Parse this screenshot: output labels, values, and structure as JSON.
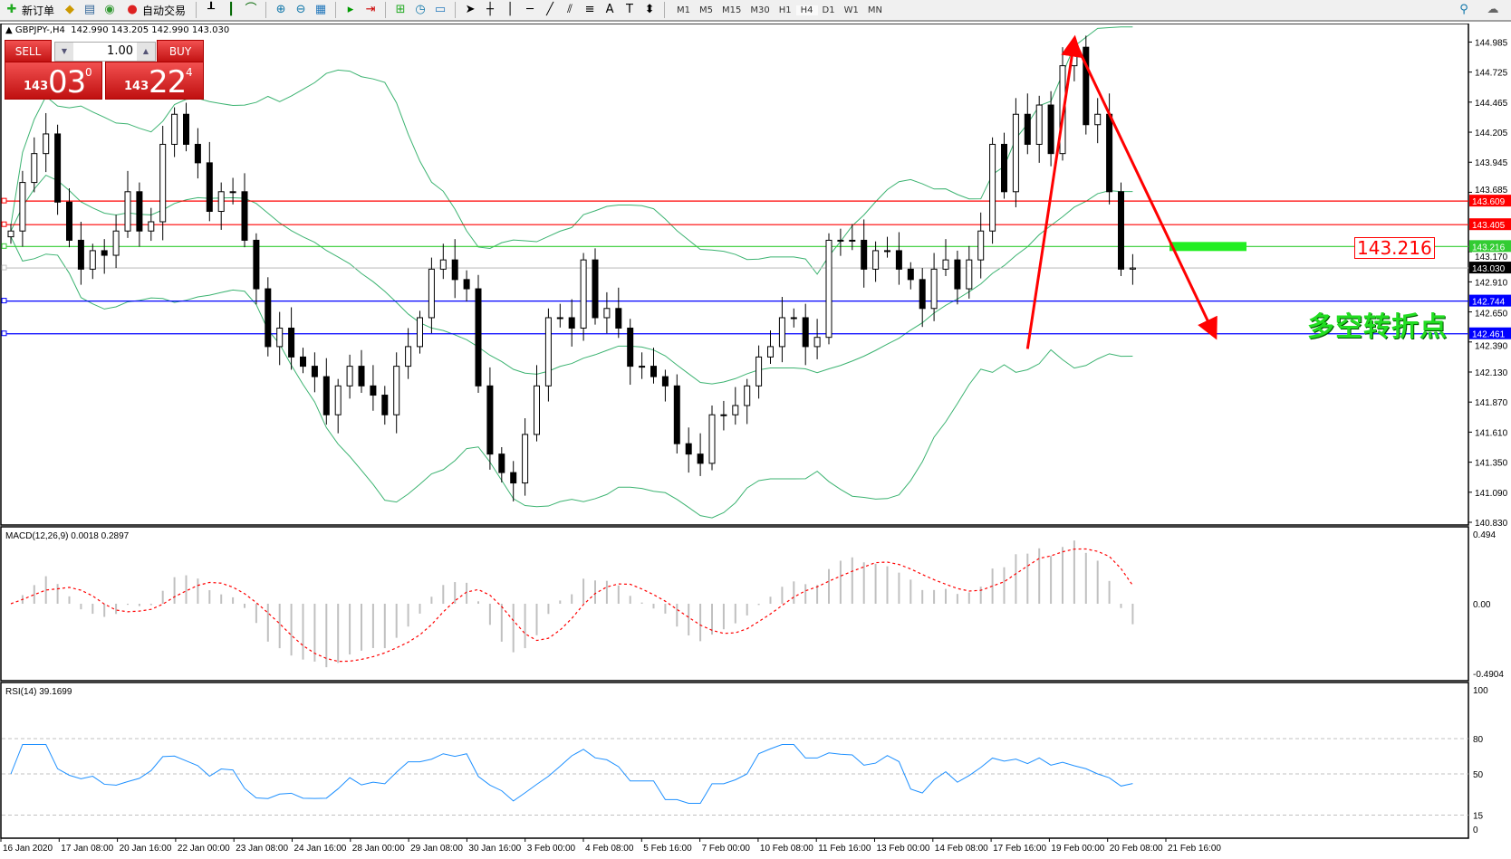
{
  "toolbar": {
    "new_order": "新订单",
    "auto_trading": "自动交易",
    "timeframes": [
      "M1",
      "M5",
      "M15",
      "M30",
      "H1",
      "H4",
      "D1",
      "W1",
      "MN"
    ],
    "active_timeframe": "H4"
  },
  "chart_header": {
    "symbol": "GBPJPY-,H4",
    "ohlc": "142.990 143.205 142.990 143.030"
  },
  "one_click": {
    "sell_label": "SELL",
    "buy_label": "BUY",
    "lot": "1.00",
    "sell_big": "143",
    "sell_main": "03",
    "sell_frac": "0",
    "buy_big": "143",
    "buy_main": "22",
    "buy_frac": "4"
  },
  "annotation_label": "143.216",
  "annotation_text": "多空转折点",
  "colors": {
    "up_down_candle": "#000000",
    "bollinger": "#3cb371",
    "resistance": "#ff0000",
    "pivot": "#33cc33",
    "support": "#0000ff",
    "bid": "#c0c0c0",
    "macd_hist": "#c0c0c0",
    "macd_signal": "#ff0000",
    "rsi": "#1e90ff",
    "arrows": "#ff0000"
  },
  "chart_data": {
    "type": "candlestick",
    "symbol": "GBPJPY-",
    "timeframe": "H4",
    "price_axis": {
      "ylim": [
        140.83,
        145.11
      ],
      "ticks": [
        "144.985",
        "144.725",
        "144.465",
        "144.205",
        "143.945",
        "143.685",
        "143.170",
        "142.910",
        "142.650",
        "142.390",
        "142.130",
        "141.870",
        "141.610",
        "141.350",
        "141.090",
        "140.830"
      ]
    },
    "time_ticks": [
      "16 Jan 2020",
      "17 Jan 08:00",
      "20 Jan 16:00",
      "22 Jan 00:00",
      "23 Jan 08:00",
      "24 Jan 16:00",
      "28 Jan 00:00",
      "29 Jan 08:00",
      "30 Jan 16:00",
      "3 Feb 00:00",
      "4 Feb 08:00",
      "5 Feb 16:00",
      "7 Feb 00:00",
      "10 Feb 08:00",
      "11 Feb 16:00",
      "13 Feb 00:00",
      "14 Feb 08:00",
      "17 Feb 16:00",
      "19 Feb 00:00",
      "20 Feb 08:00",
      "21 Feb 16:00"
    ],
    "closes_approx": [
      143.35,
      143.77,
      144.02,
      144.19,
      143.6,
      143.27,
      143.02,
      143.18,
      143.14,
      143.35,
      143.69,
      143.35,
      143.43,
      144.1,
      144.36,
      144.1,
      143.94,
      143.52,
      143.69,
      143.69,
      143.27,
      142.85,
      142.35,
      142.51,
      142.26,
      142.18,
      142.09,
      141.76,
      142.01,
      142.18,
      142.01,
      141.93,
      141.76,
      142.18,
      142.35,
      142.6,
      143.02,
      143.1,
      142.93,
      142.85,
      142.01,
      141.42,
      141.26,
      141.17,
      141.59,
      142.01,
      142.6,
      142.6,
      142.51,
      143.1,
      142.6,
      142.68,
      142.51,
      142.18,
      142.18,
      142.09,
      142.01,
      141.51,
      141.42,
      141.34,
      141.76,
      141.76,
      141.84,
      142.01,
      142.26,
      142.35,
      142.6,
      142.6,
      142.35,
      142.43,
      143.27,
      143.27,
      143.27,
      143.02,
      143.18,
      143.18,
      143.02,
      142.93,
      142.68,
      143.02,
      143.1,
      142.85,
      143.1,
      143.35,
      144.1,
      143.69,
      144.36,
      144.1,
      144.44,
      144.02,
      144.78,
      144.94,
      144.27,
      144.36,
      143.69,
      143.02,
      143.03
    ],
    "last_ohlc": {
      "open": 142.99,
      "high": 143.205,
      "low": 142.99,
      "close": 143.03
    },
    "horizontal_lines": [
      {
        "price": 143.609,
        "label": "143.609",
        "kind": "resistance"
      },
      {
        "price": 143.405,
        "label": "143.405",
        "kind": "resistance"
      },
      {
        "price": 143.216,
        "label": "143.216",
        "kind": "pivot"
      },
      {
        "price": 143.03,
        "label": "143.030",
        "kind": "bid"
      },
      {
        "price": 142.744,
        "label": "142.744",
        "kind": "support"
      },
      {
        "price": 142.461,
        "label": "142.461",
        "kind": "support"
      }
    ],
    "trend_arrows": [
      {
        "from": [
          87,
          142.33
        ],
        "to": [
          91,
          145.0
        ]
      },
      {
        "from": [
          91,
          145.0
        ],
        "to": [
          103,
          142.45
        ]
      }
    ],
    "indicators": {
      "bollinger": {
        "period": 20,
        "deviation": 2
      },
      "macd": {
        "label": "MACD(12,26,9) 0.0018 0.2897",
        "ticks": [
          "0.494",
          "0.00",
          "-0.4904"
        ],
        "range": [
          -0.4904,
          0.494
        ]
      },
      "rsi": {
        "label": "RSI(14) 39.1699",
        "ticks": [
          "100",
          "80",
          "50",
          "15",
          "0"
        ],
        "levels": [
          80,
          50,
          15
        ]
      }
    }
  }
}
